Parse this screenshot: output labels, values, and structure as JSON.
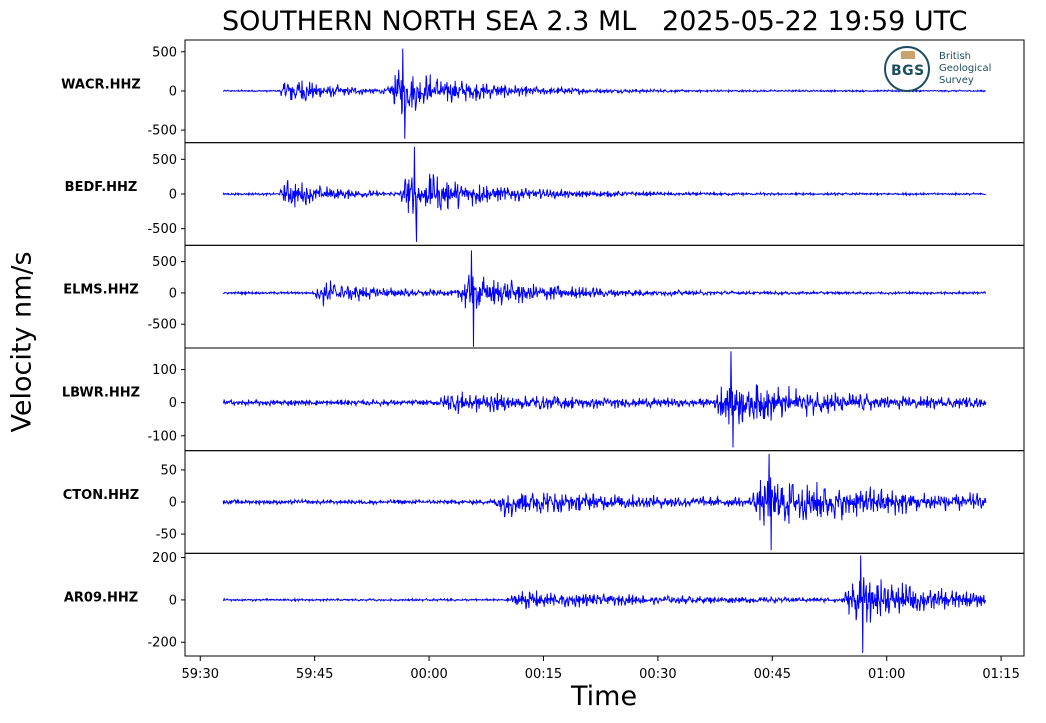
{
  "chart_data": {
    "type": "line",
    "title": "SOUTHERN NORTH SEA 2.3 ML   2025-05-22 19:59 UTC",
    "xlabel": "Time",
    "ylabel": "Velocity nm/s",
    "x_ticks": [
      "59:30",
      "59:45",
      "00:00",
      "00:15",
      "00:30",
      "00:45",
      "01:00",
      "01:15"
    ],
    "x_range_seconds": [
      -32,
      78
    ],
    "data_range_seconds": [
      -27,
      73
    ],
    "line_color": "#0000ff",
    "logo": {
      "abbr": "BGS",
      "lines": [
        "British",
        "Geological",
        "Survey"
      ],
      "color": "#1d4f5f"
    },
    "panels": [
      {
        "name": "WACR.HHZ",
        "yticks": [
          500,
          0,
          -500
        ],
        "ylim": [
          -660,
          650
        ],
        "noise": 12,
        "peak_max": 540,
        "peak_min": -610,
        "packets": [
          {
            "t": -18.5,
            "amp": 220,
            "w": 6,
            "rise": 1.2
          },
          {
            "t": -4,
            "amp": 320,
            "w": 10,
            "rise": 1.5
          }
        ]
      },
      {
        "name": "BEDF.HHZ",
        "yticks": [
          500,
          0,
          -500
        ],
        "ylim": [
          -740,
          740
        ],
        "noise": 18,
        "peak_max": 680,
        "peak_min": -690,
        "packets": [
          {
            "t": -18.5,
            "amp": 230,
            "w": 6,
            "rise": 1.2
          },
          {
            "t": -2.5,
            "amp": 380,
            "w": 10,
            "rise": 1.5
          }
        ]
      },
      {
        "name": "ELMS.HHZ",
        "yticks": [
          500,
          0,
          -500
        ],
        "ylim": [
          -880,
          760
        ],
        "noise": 22,
        "peak_max": 680,
        "peak_min": -860,
        "packets": [
          {
            "t": -14,
            "amp": 220,
            "w": 8,
            "rise": 1.2
          },
          {
            "t": 5,
            "amp": 310,
            "w": 11,
            "rise": 1.6
          }
        ]
      },
      {
        "name": "LBWR.HHZ",
        "yticks": [
          100,
          0,
          -100
        ],
        "ylim": [
          -145,
          165
        ],
        "noise": 10,
        "peak_max": 155,
        "peak_min": -135,
        "packets": [
          {
            "t": 3,
            "amp": 28,
            "w": 18,
            "rise": 2
          },
          {
            "t": 39,
            "amp": 70,
            "w": 14,
            "rise": 2
          }
        ]
      },
      {
        "name": "CTON.HHZ",
        "yticks": [
          50,
          0,
          -50
        ],
        "ylim": [
          -80,
          80
        ],
        "noise": 4,
        "peak_max": 75,
        "peak_min": -75,
        "packets": [
          {
            "t": 10,
            "amp": 22,
            "w": 18,
            "rise": 2
          },
          {
            "t": 44,
            "amp": 40,
            "w": 20,
            "rise": 2
          }
        ]
      },
      {
        "name": "AR09.HHZ",
        "yticks": [
          200,
          0,
          -200
        ],
        "ylim": [
          -265,
          220
        ],
        "noise": 6,
        "peak_max": 210,
        "peak_min": -250,
        "packets": [
          {
            "t": 12,
            "amp": 45,
            "w": 20,
            "rise": 2
          },
          {
            "t": 56,
            "amp": 120,
            "w": 12,
            "rise": 2
          }
        ]
      }
    ]
  }
}
